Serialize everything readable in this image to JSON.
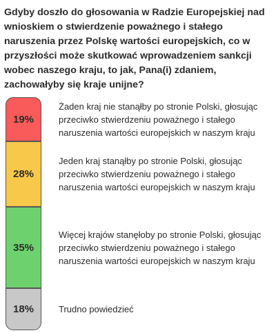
{
  "question": "Gdyby doszło do głosowania w Radzie Europejskiej nad wnioskiem o stwierdzenie poważnego i stałego naruszenia przez Polskę wartości europejskich, co w przyszłości może skutkować wprowadzeniem sankcji wobec naszego kraju, to jak, Pana(i) zdaniem, zachowałyby się kraje unijne?",
  "chart_data": {
    "type": "bar",
    "orientation": "stacked-vertical",
    "title": "Gdyby doszło do głosowania w Radzie Europejskiej nad wnioskiem o stwierdzenie poważnego i stałego naruszenia przez Polskę wartości europejskich, co w przyszłości może skutkować wprowadzeniem sankcji wobec naszego kraju, to jak, Pana(i) zdaniem, zachowałyby się kraje unijne?",
    "categories": [
      "Żaden kraj nie stanąłby po stronie Polski, głosując przeciwko stwierdzeniu poważnego i stałego naruszenia wartości europejskich w naszym kraju",
      "Jeden kraj stanąłby po stronie Polski, głosując przeciwko stwierdzeniu poważnego i stałego naruszenia wartości europejskich w naszym kraju",
      "Więcej krajów stanęłoby po stronie Polski, głosując przeciwko stwierdzeniu poważnego i stałego naruszenia wartości europejskich w naszym kraju",
      "Trudno powiedzieć"
    ],
    "values": [
      19,
      28,
      35,
      18
    ],
    "value_labels": [
      "19%",
      "28%",
      "35%",
      "18%"
    ],
    "colors": [
      "#f95a5a",
      "#f8c84a",
      "#6dd26d",
      "#c8c8c8"
    ],
    "unit": "%"
  }
}
